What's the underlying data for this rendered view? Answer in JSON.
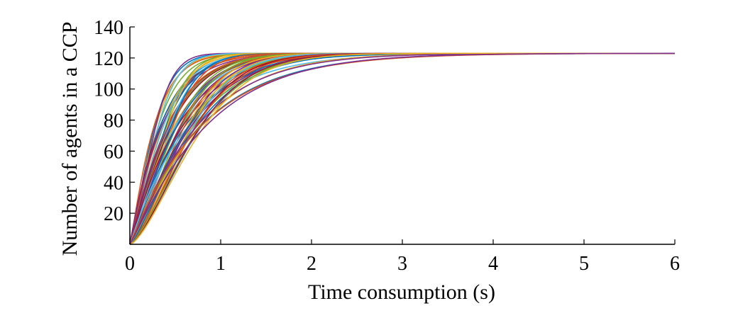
{
  "chart_data": {
    "type": "line",
    "title": "",
    "xlabel": "Time consumption (s)",
    "ylabel": "Number of agents in a CCP",
    "xlim": [
      0,
      6
    ],
    "ylim": [
      0,
      140
    ],
    "xticks": [
      0,
      1,
      2,
      3,
      4,
      5,
      6
    ],
    "yticks": [
      20,
      40,
      60,
      80,
      100,
      120,
      140
    ],
    "grid": false,
    "legend": "none",
    "series_count": 60,
    "saturation_value": 123,
    "curve_form": "y = 123 * (1 - exp(-(t/tau)^k))",
    "tau_range_s": [
      0.28,
      0.85
    ],
    "k_range": [
      1.0,
      1.6
    ],
    "palette": [
      "#0072BD",
      "#D95319",
      "#EDB120",
      "#7E2F8E",
      "#77AC30",
      "#4DBEEE",
      "#A2142F"
    ]
  }
}
